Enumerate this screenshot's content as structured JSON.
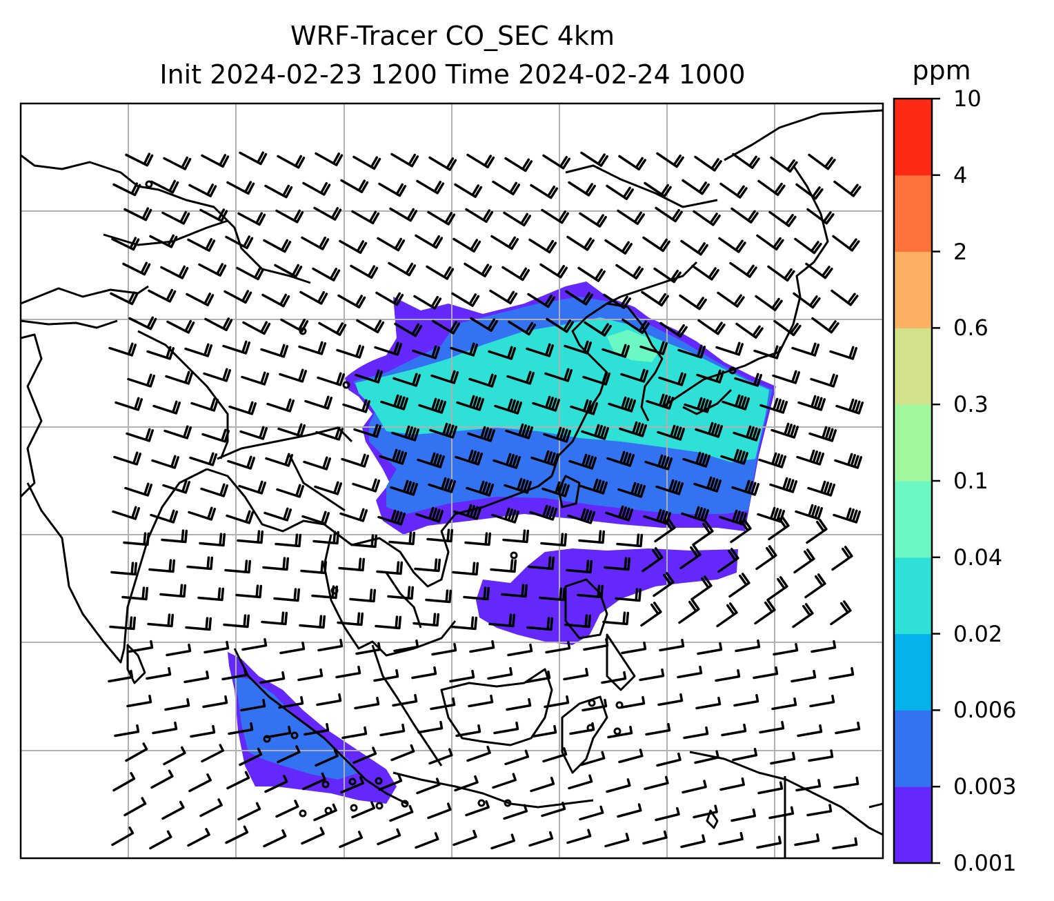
{
  "title": {
    "line1": "WRF-Tracer CO_SEC 4km",
    "line2": "Init 2024-02-23 1200 Time 2024-02-24 1000"
  },
  "colorbar": {
    "unit": "ppm",
    "ticks": [
      "0.001",
      "0.003",
      "0.006",
      "0.02",
      "0.04",
      "0.1",
      "0.3",
      "0.6",
      "2",
      "4",
      "10"
    ],
    "colors": [
      "#6428fa",
      "#3373f2",
      "#06b2ea",
      "#2fe0d6",
      "#6cf8c2",
      "#9ff99c",
      "#d2e28a",
      "#fcb062",
      "#fe723c",
      "#ff2a16"
    ]
  },
  "map": {
    "gridlines": true,
    "field_colors": {
      "level1": "#6428fa",
      "level2": "#3373f2",
      "level3": "#2fe0d6",
      "level4": "#6cf8c2"
    },
    "layers": [
      "coastlines",
      "country-borders",
      "wind-barbs",
      "calm-circles",
      "tracer-plume"
    ]
  }
}
